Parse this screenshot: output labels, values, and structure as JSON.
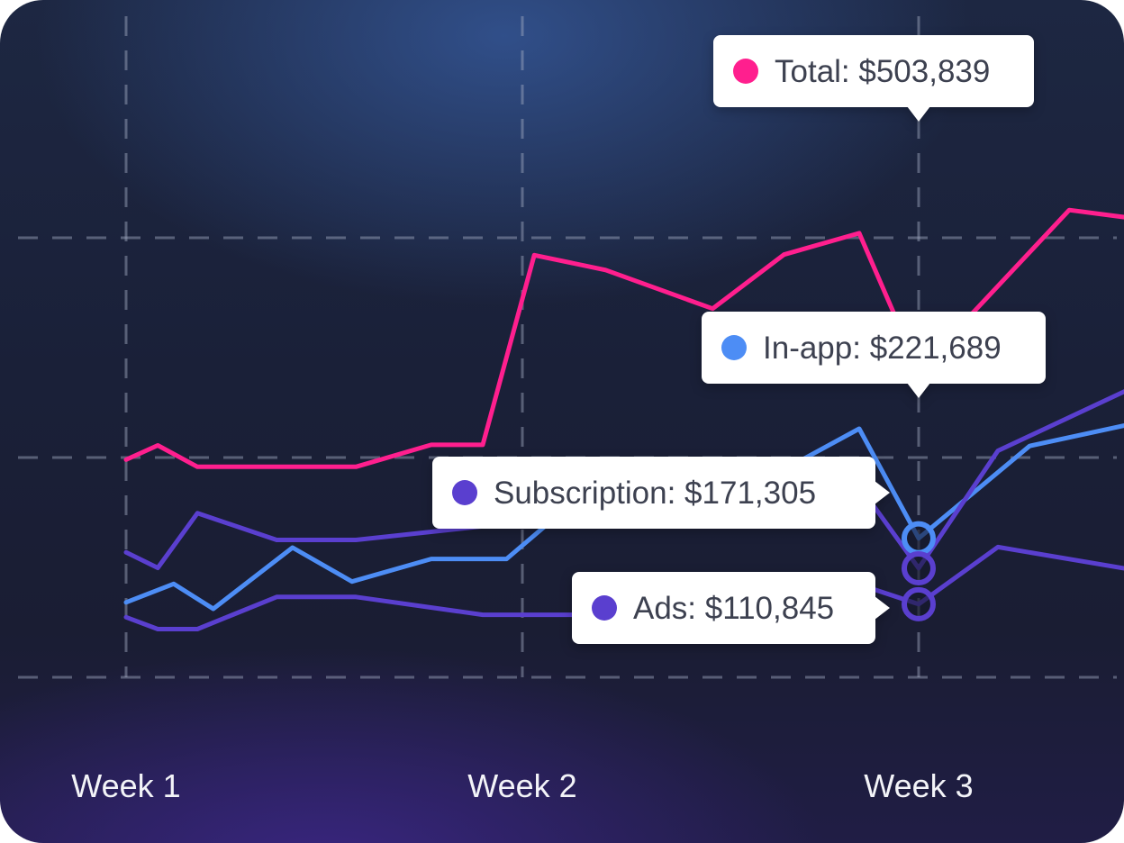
{
  "chart_data": {
    "type": "line",
    "x_labels": [
      "Week 1",
      "Week 2",
      "Week 3"
    ],
    "x_range": [
      0.0,
      2.6
    ],
    "y_range": [
      0,
      800000
    ],
    "grid": true,
    "highlight_x": 2.0,
    "series": [
      {
        "name": "Total",
        "color": "#ff1f8e",
        "x": [
          0.0,
          0.08,
          0.18,
          0.4,
          0.58,
          0.77,
          0.9,
          1.03,
          1.21,
          1.48,
          1.66,
          1.85,
          2.0,
          2.38,
          2.6
        ],
        "y": [
          354000,
          378000,
          342000,
          342000,
          342000,
          379000,
          379000,
          698000,
          673000,
          608000,
          699000,
          735000,
          503839,
          774000,
          755000
        ]
      },
      {
        "name": "In-app",
        "color": "#4d8df5",
        "x": [
          0.0,
          0.12,
          0.22,
          0.42,
          0.57,
          0.77,
          0.96,
          1.23,
          1.47,
          1.64,
          1.85,
          2.0,
          2.28,
          2.6
        ],
        "y": [
          114000,
          145000,
          103000,
          206000,
          149000,
          187000,
          187000,
          340000,
          327000,
          330000,
          406000,
          221689,
          377000,
          423000
        ]
      },
      {
        "name": "Subscription",
        "color": "#5a3fcf",
        "x": [
          0.0,
          0.08,
          0.18,
          0.38,
          0.58,
          0.9,
          1.18,
          1.58,
          1.85,
          2.0,
          2.2,
          2.6
        ],
        "y": [
          198000,
          172000,
          264000,
          219000,
          219000,
          242000,
          266000,
          262000,
          310000,
          171305,
          369000,
          494000
        ]
      },
      {
        "name": "Ads",
        "color": "#5a3fcf",
        "x": [
          0.0,
          0.08,
          0.18,
          0.38,
          0.58,
          0.9,
          1.18,
          1.5,
          1.85,
          2.0,
          2.2,
          2.6
        ],
        "y": [
          89000,
          69000,
          69000,
          123000,
          123000,
          93000,
          93000,
          105000,
          144000,
          110845,
          207000,
          162000
        ]
      }
    ],
    "tooltips": [
      {
        "label": "Total: $503,839",
        "color": "#ff1f8e"
      },
      {
        "label": "In-app: $221,689",
        "color": "#4d8df5"
      },
      {
        "label": "Subscription: $171,305",
        "color": "#5a3fcf"
      },
      {
        "label": "Ads: $110,845",
        "color": "#5a3fcf"
      }
    ]
  }
}
